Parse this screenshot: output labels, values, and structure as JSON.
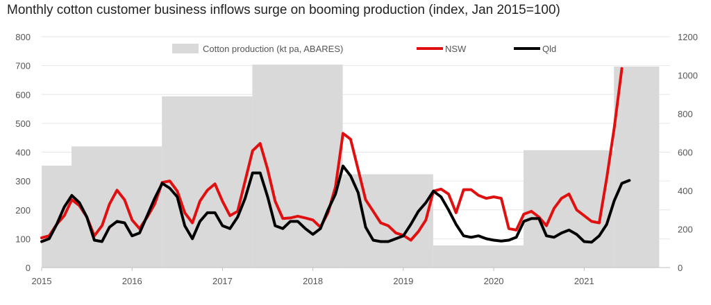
{
  "chart_data": {
    "type": "line",
    "title": "Monthly cotton customer business inflows surge on booming production (index, Jan 2015=100)",
    "x_tick_labels": [
      "2015",
      "2016",
      "2017",
      "2018",
      "2019",
      "2020",
      "2021"
    ],
    "x_range": [
      2015.0,
      2021.95
    ],
    "left_axis": {
      "ylim": [
        0,
        800
      ],
      "ticks": [
        "0",
        "100",
        "200",
        "300",
        "400",
        "500",
        "600",
        "700",
        "800"
      ]
    },
    "right_axis": {
      "ylim": [
        0,
        1200
      ],
      "ticks": [
        "0",
        "200",
        "400",
        "600",
        "800",
        "1000",
        "1200"
      ]
    },
    "grid": true,
    "legend": "top-center",
    "production": {
      "name": "Cotton production (kt pa, ABARES)",
      "color": "#d9d9d9",
      "axis": "right",
      "steps": [
        {
          "start": 2015.0,
          "end": 2015.33,
          "value": 530
        },
        {
          "start": 2015.33,
          "end": 2016.33,
          "value": 630
        },
        {
          "start": 2016.33,
          "end": 2017.33,
          "value": 890
        },
        {
          "start": 2017.33,
          "end": 2018.33,
          "value": 1055
        },
        {
          "start": 2018.33,
          "end": 2019.33,
          "value": 485
        },
        {
          "start": 2019.33,
          "end": 2020.33,
          "value": 115
        },
        {
          "start": 2020.33,
          "end": 2021.33,
          "value": 610
        },
        {
          "start": 2021.33,
          "end": 2021.83,
          "value": 1045
        }
      ]
    },
    "series": [
      {
        "name": "NSW",
        "color": "#e01010",
        "axis": "left",
        "points": [
          [
            2015.0,
            103
          ],
          [
            2015.083,
            110
          ],
          [
            2015.167,
            150
          ],
          [
            2015.25,
            180
          ],
          [
            2015.333,
            235
          ],
          [
            2015.417,
            215
          ],
          [
            2015.5,
            175
          ],
          [
            2015.583,
            110
          ],
          [
            2015.667,
            145
          ],
          [
            2015.75,
            220
          ],
          [
            2015.833,
            268
          ],
          [
            2015.917,
            235
          ],
          [
            2016.0,
            165
          ],
          [
            2016.083,
            135
          ],
          [
            2016.167,
            175
          ],
          [
            2016.25,
            220
          ],
          [
            2016.333,
            295
          ],
          [
            2016.417,
            300
          ],
          [
            2016.5,
            265
          ],
          [
            2016.583,
            190
          ],
          [
            2016.667,
            155
          ],
          [
            2016.75,
            230
          ],
          [
            2016.833,
            268
          ],
          [
            2016.917,
            290
          ],
          [
            2017.0,
            230
          ],
          [
            2017.083,
            180
          ],
          [
            2017.167,
            195
          ],
          [
            2017.25,
            300
          ],
          [
            2017.333,
            405
          ],
          [
            2017.417,
            430
          ],
          [
            2017.5,
            340
          ],
          [
            2017.583,
            230
          ],
          [
            2017.667,
            170
          ],
          [
            2017.75,
            172
          ],
          [
            2017.833,
            178
          ],
          [
            2017.917,
            172
          ],
          [
            2018.0,
            165
          ],
          [
            2018.083,
            140
          ],
          [
            2018.167,
            190
          ],
          [
            2018.25,
            280
          ],
          [
            2018.333,
            465
          ],
          [
            2018.417,
            445
          ],
          [
            2018.5,
            340
          ],
          [
            2018.583,
            235
          ],
          [
            2018.667,
            195
          ],
          [
            2018.75,
            155
          ],
          [
            2018.833,
            145
          ],
          [
            2018.917,
            120
          ],
          [
            2019.0,
            112
          ],
          [
            2019.083,
            95
          ],
          [
            2019.167,
            125
          ],
          [
            2019.25,
            165
          ],
          [
            2019.333,
            265
          ],
          [
            2019.417,
            272
          ],
          [
            2019.5,
            255
          ],
          [
            2019.583,
            190
          ],
          [
            2019.667,
            270
          ],
          [
            2019.75,
            270
          ],
          [
            2019.833,
            250
          ],
          [
            2019.917,
            240
          ],
          [
            2020.0,
            245
          ],
          [
            2020.083,
            240
          ],
          [
            2020.167,
            135
          ],
          [
            2020.25,
            130
          ],
          [
            2020.333,
            185
          ],
          [
            2020.417,
            195
          ],
          [
            2020.5,
            175
          ],
          [
            2020.583,
            145
          ],
          [
            2020.667,
            205
          ],
          [
            2020.75,
            240
          ],
          [
            2020.833,
            255
          ],
          [
            2020.917,
            200
          ],
          [
            2021.0,
            180
          ],
          [
            2021.083,
            160
          ],
          [
            2021.167,
            155
          ],
          [
            2021.25,
            310
          ],
          [
            2021.333,
            485
          ],
          [
            2021.417,
            690
          ]
        ]
      },
      {
        "name": "Qld",
        "color": "#000000",
        "axis": "left",
        "points": [
          [
            2015.0,
            90
          ],
          [
            2015.083,
            100
          ],
          [
            2015.167,
            150
          ],
          [
            2015.25,
            210
          ],
          [
            2015.333,
            250
          ],
          [
            2015.417,
            225
          ],
          [
            2015.5,
            175
          ],
          [
            2015.583,
            95
          ],
          [
            2015.667,
            90
          ],
          [
            2015.75,
            140
          ],
          [
            2015.833,
            160
          ],
          [
            2015.917,
            155
          ],
          [
            2016.0,
            110
          ],
          [
            2016.083,
            120
          ],
          [
            2016.167,
            180
          ],
          [
            2016.25,
            240
          ],
          [
            2016.333,
            292
          ],
          [
            2016.417,
            275
          ],
          [
            2016.5,
            245
          ],
          [
            2016.583,
            145
          ],
          [
            2016.667,
            100
          ],
          [
            2016.75,
            160
          ],
          [
            2016.833,
            190
          ],
          [
            2016.917,
            190
          ],
          [
            2017.0,
            145
          ],
          [
            2017.083,
            135
          ],
          [
            2017.167,
            175
          ],
          [
            2017.25,
            240
          ],
          [
            2017.333,
            328
          ],
          [
            2017.417,
            328
          ],
          [
            2017.5,
            245
          ],
          [
            2017.583,
            145
          ],
          [
            2017.667,
            135
          ],
          [
            2017.75,
            160
          ],
          [
            2017.833,
            160
          ],
          [
            2017.917,
            135
          ],
          [
            2018.0,
            115
          ],
          [
            2018.083,
            135
          ],
          [
            2018.167,
            200
          ],
          [
            2018.25,
            255
          ],
          [
            2018.333,
            352
          ],
          [
            2018.417,
            318
          ],
          [
            2018.5,
            260
          ],
          [
            2018.583,
            140
          ],
          [
            2018.667,
            95
          ],
          [
            2018.75,
            90
          ],
          [
            2018.833,
            90
          ],
          [
            2018.917,
            100
          ],
          [
            2019.0,
            110
          ],
          [
            2019.083,
            150
          ],
          [
            2019.167,
            195
          ],
          [
            2019.25,
            225
          ],
          [
            2019.333,
            265
          ],
          [
            2019.417,
            245
          ],
          [
            2019.5,
            200
          ],
          [
            2019.583,
            150
          ],
          [
            2019.667,
            110
          ],
          [
            2019.75,
            105
          ],
          [
            2019.833,
            110
          ],
          [
            2019.917,
            100
          ],
          [
            2020.0,
            95
          ],
          [
            2020.083,
            92
          ],
          [
            2020.167,
            95
          ],
          [
            2020.25,
            105
          ],
          [
            2020.333,
            160
          ],
          [
            2020.417,
            170
          ],
          [
            2020.5,
            170
          ],
          [
            2020.583,
            110
          ],
          [
            2020.667,
            105
          ],
          [
            2020.75,
            120
          ],
          [
            2020.833,
            130
          ],
          [
            2020.917,
            115
          ],
          [
            2021.0,
            90
          ],
          [
            2021.083,
            88
          ],
          [
            2021.167,
            110
          ],
          [
            2021.25,
            150
          ],
          [
            2021.333,
            232
          ],
          [
            2021.417,
            292
          ],
          [
            2021.5,
            302
          ]
        ]
      }
    ]
  }
}
